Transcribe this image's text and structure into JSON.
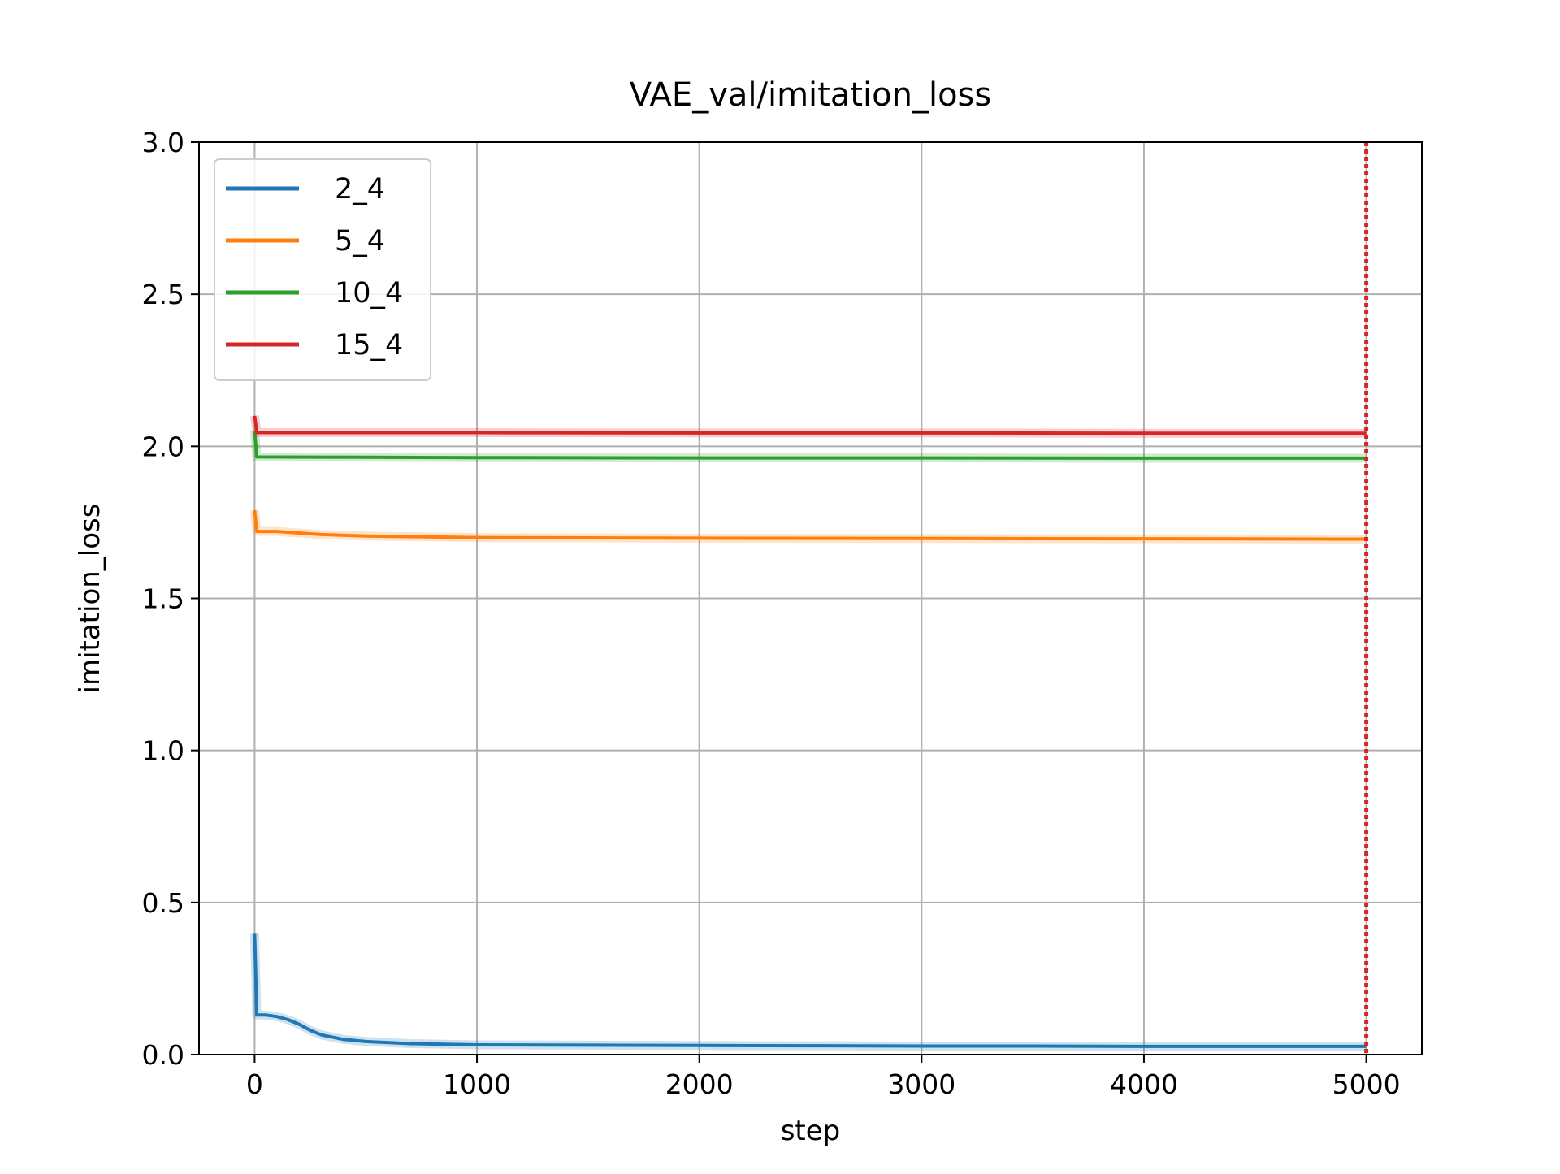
{
  "chart_data": {
    "type": "line",
    "title": "VAE_val/imitation_loss",
    "xlabel": "step",
    "ylabel": "imitation_loss",
    "xlim": [
      -250,
      5250
    ],
    "ylim": [
      0.0,
      3.0
    ],
    "x_ticks": [
      0,
      1000,
      2000,
      3000,
      4000,
      5000
    ],
    "x_tick_labels": [
      "0",
      "1000",
      "2000",
      "3000",
      "4000",
      "5000"
    ],
    "y_ticks": [
      0.0,
      0.5,
      1.0,
      1.5,
      2.0,
      2.5,
      3.0
    ],
    "y_tick_labels": [
      "0.0",
      "0.5",
      "1.0",
      "1.5",
      "2.0",
      "2.5",
      "3.0"
    ],
    "grid": true,
    "legend_position": "upper-left",
    "vline": {
      "x": 5000,
      "color": "#d62728",
      "style": "dotted"
    },
    "series": [
      {
        "name": "2_4",
        "color": "#1f77b4",
        "x": [
          0,
          10,
          50,
          100,
          150,
          200,
          250,
          300,
          400,
          500,
          700,
          1000,
          1500,
          2000,
          2500,
          3000,
          3500,
          4000,
          4500,
          5000
        ],
        "values": [
          0.4,
          0.13,
          0.13,
          0.125,
          0.115,
          0.1,
          0.08,
          0.065,
          0.05,
          0.043,
          0.036,
          0.032,
          0.031,
          0.03,
          0.029,
          0.028,
          0.028,
          0.027,
          0.027,
          0.027
        ]
      },
      {
        "name": "5_4",
        "color": "#ff7f0e",
        "x": [
          0,
          10,
          100,
          200,
          300,
          500,
          1000,
          2000,
          3000,
          4000,
          5000
        ],
        "values": [
          1.79,
          1.72,
          1.72,
          1.715,
          1.71,
          1.705,
          1.7,
          1.698,
          1.697,
          1.696,
          1.695
        ]
      },
      {
        "name": "10_4",
        "color": "#2ca02c",
        "x": [
          0,
          10,
          500,
          1000,
          2000,
          3000,
          4000,
          5000
        ],
        "values": [
          2.05,
          1.965,
          1.964,
          1.963,
          1.962,
          1.962,
          1.961,
          1.961
        ]
      },
      {
        "name": "15_4",
        "color": "#d62728",
        "x": [
          0,
          10,
          1000,
          2000,
          3000,
          4000,
          5000
        ],
        "values": [
          2.1,
          2.045,
          2.045,
          2.044,
          2.044,
          2.043,
          2.043
        ]
      }
    ]
  }
}
